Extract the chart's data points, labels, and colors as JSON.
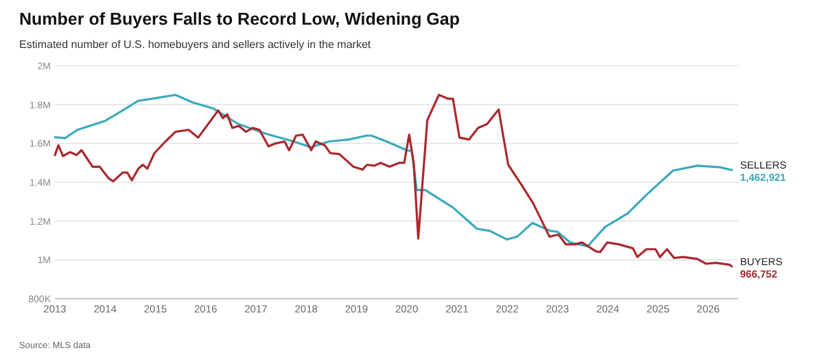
{
  "chart_data": {
    "type": "line",
    "title": "Number of Buyers Falls to Record Low, Widening Gap",
    "subtitle": "Estimated number of U.S. homebuyers and sellers actively in the market",
    "annotations": [
      "Source: MLS data"
    ],
    "xlim": [
      2013,
      2026.6
    ],
    "xticks": [
      2013,
      2014,
      2015,
      2016,
      2017,
      2018,
      2019,
      2020,
      2021,
      2022,
      2023,
      2024,
      2025,
      2026
    ],
    "ylim": [
      800000,
      2000000
    ],
    "yticks": [
      {
        "value": 800000,
        "label": "800K"
      },
      {
        "value": 1000000,
        "label": "1M"
      },
      {
        "value": 1200000,
        "label": "1.2M"
      },
      {
        "value": 1400000,
        "label": "1.4M"
      },
      {
        "value": 1600000,
        "label": "1.6M"
      },
      {
        "value": 1800000,
        "label": "1.8M"
      },
      {
        "value": 2000000,
        "label": "2M"
      }
    ],
    "grid": "y",
    "legend": false,
    "marker": "none",
    "line_style": "solid",
    "series": [
      {
        "name": "SELLERS",
        "color": "#3ba9bd",
        "x": [
          2013,
          2013.2,
          2013.45,
          2014,
          2014.35,
          2014.66,
          2014.93,
          2015.4,
          2015.75,
          2016.15,
          2016.65,
          2017.2,
          2017.75,
          2018.1,
          2018.45,
          2018.85,
          2019.2,
          2019.3,
          2019.6,
          2020.0,
          2020.1,
          2020.2,
          2020.37,
          2020.92,
          2021.4,
          2021.65,
          2022.0,
          2022.2,
          2022.5,
          2022.85,
          2023.0,
          2023.25,
          2023.6,
          2023.95,
          2024.4,
          2024.77,
          2025.3,
          2025.78,
          2026.24,
          2026.47
        ],
        "values": [
          1632000,
          1627000,
          1670000,
          1716000,
          1770000,
          1820000,
          1830000,
          1850000,
          1810000,
          1780000,
          1700000,
          1650000,
          1610000,
          1580000,
          1610000,
          1620000,
          1640000,
          1640000,
          1610000,
          1565000,
          1560000,
          1360000,
          1360000,
          1270000,
          1160000,
          1150000,
          1105000,
          1120000,
          1190000,
          1150000,
          1145000,
          1090000,
          1070000,
          1170000,
          1240000,
          1335000,
          1460000,
          1485000,
          1477000,
          1462921
        ],
        "value_labels": [
          null,
          null,
          null,
          null,
          null,
          null,
          null,
          null,
          null,
          null,
          null,
          null,
          null,
          null,
          null,
          null,
          null,
          null,
          null,
          null,
          null,
          null,
          null,
          null,
          null,
          null,
          null,
          null,
          null,
          null,
          null,
          null,
          null,
          null,
          null,
          null,
          null,
          null,
          null,
          "1,462,921"
        ]
      },
      {
        "name": "BUYERS",
        "color": "#a82a2e",
        "x": [
          2013,
          2013.07,
          2013.16,
          2013.3,
          2013.43,
          2013.53,
          2013.75,
          2013.89,
          2014.07,
          2014.16,
          2014.35,
          2014.44,
          2014.53,
          2014.66,
          2014.75,
          2014.84,
          2014.98,
          2015.2,
          2015.4,
          2015.66,
          2015.85,
          2016.25,
          2016.34,
          2016.43,
          2016.53,
          2016.66,
          2016.8,
          2016.94,
          2017.07,
          2017.25,
          2017.39,
          2017.57,
          2017.66,
          2017.8,
          2017.93,
          2018.1,
          2018.19,
          2018.37,
          2018.48,
          2018.66,
          2018.94,
          2019.12,
          2019.21,
          2019.35,
          2019.48,
          2019.66,
          2019.85,
          2019.95,
          2020.05,
          2020.14,
          2020.23,
          2020.41,
          2020.64,
          2020.83,
          2020.92,
          2021.05,
          2021.24,
          2021.42,
          2021.6,
          2021.83,
          2022.02,
          2022.3,
          2022.52,
          2022.84,
          2023.02,
          2023.17,
          2023.35,
          2023.49,
          2023.76,
          2023.85,
          2023.99,
          2024.22,
          2024.5,
          2024.59,
          2024.77,
          2024.95,
          2025.04,
          2025.18,
          2025.32,
          2025.5,
          2025.78,
          2025.96,
          2026.15,
          2026.42,
          2026.47
        ],
        "values": [
          1540000,
          1590000,
          1535000,
          1555000,
          1540000,
          1565000,
          1480000,
          1480000,
          1420000,
          1405000,
          1450000,
          1450000,
          1410000,
          1470000,
          1490000,
          1470000,
          1550000,
          1610000,
          1660000,
          1670000,
          1630000,
          1770000,
          1730000,
          1750000,
          1680000,
          1690000,
          1660000,
          1680000,
          1670000,
          1585000,
          1600000,
          1610000,
          1565000,
          1640000,
          1645000,
          1565000,
          1610000,
          1590000,
          1550000,
          1545000,
          1480000,
          1465000,
          1490000,
          1485000,
          1500000,
          1480000,
          1500000,
          1500000,
          1645000,
          1500000,
          1110000,
          1720000,
          1850000,
          1830000,
          1830000,
          1630000,
          1620000,
          1680000,
          1700000,
          1775000,
          1490000,
          1380000,
          1290000,
          1120000,
          1130000,
          1080000,
          1080000,
          1090000,
          1045000,
          1040000,
          1090000,
          1080000,
          1060000,
          1015000,
          1055000,
          1055000,
          1015000,
          1055000,
          1010000,
          1015000,
          1005000,
          980000,
          985000,
          975000,
          966752
        ],
        "value_labels": [
          null,
          null,
          null,
          null,
          null,
          null,
          null,
          null,
          null,
          null,
          null,
          null,
          null,
          null,
          null,
          null,
          null,
          null,
          null,
          null,
          null,
          null,
          null,
          null,
          null,
          null,
          null,
          null,
          null,
          null,
          null,
          null,
          null,
          null,
          null,
          null,
          null,
          null,
          null,
          null,
          null,
          null,
          null,
          null,
          null,
          null,
          null,
          null,
          null,
          null,
          null,
          null,
          null,
          null,
          null,
          null,
          null,
          null,
          null,
          null,
          null,
          null,
          null,
          null,
          null,
          null,
          null,
          null,
          null,
          null,
          null,
          null,
          null,
          null,
          null,
          null,
          null,
          null,
          null,
          null,
          null,
          null,
          null,
          null,
          "966,752"
        ]
      }
    ]
  }
}
